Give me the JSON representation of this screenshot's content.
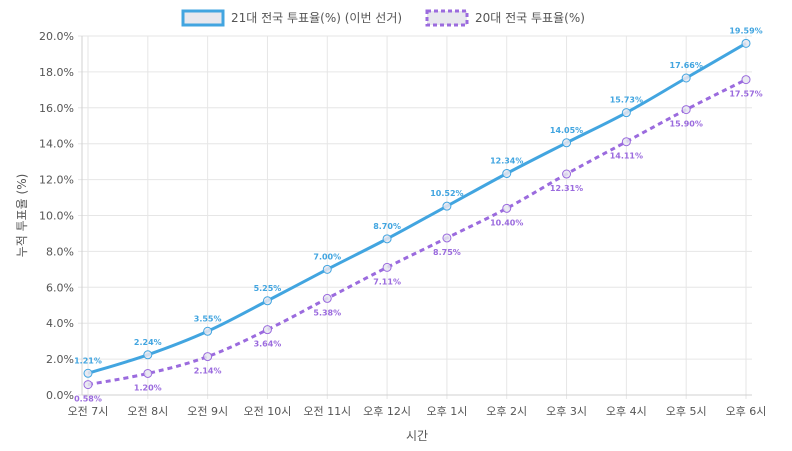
{
  "chart_data": {
    "type": "line",
    "xlabel": "시간",
    "ylabel": "누적 투표율 (%)",
    "categories": [
      "오전 7시",
      "오전 8시",
      "오전 9시",
      "오전 10시",
      "오전 11시",
      "오후 12시",
      "오후 1시",
      "오후 2시",
      "오후 3시",
      "오후 4시",
      "오후 5시",
      "오후 6시"
    ],
    "ylim": [
      0,
      20
    ],
    "yticks": [
      "0.0%",
      "2.0%",
      "4.0%",
      "6.0%",
      "8.0%",
      "10.0%",
      "12.0%",
      "14.0%",
      "16.0%",
      "18.0%",
      "20.0%"
    ],
    "grid": true,
    "legend_position": "top",
    "series": [
      {
        "name": "21대 전국 투표율(%) (이번 선거)",
        "color": "#42a5e0",
        "style": "solid",
        "values": [
          1.21,
          2.24,
          3.55,
          5.25,
          7.0,
          8.7,
          10.52,
          12.34,
          14.05,
          15.73,
          17.66,
          19.59
        ],
        "labels": [
          "1.21%",
          "2.24%",
          "3.55%",
          "5.25%",
          "7.00%",
          "8.70%",
          "10.52%",
          "12.34%",
          "14.05%",
          "15.73%",
          "17.66%",
          "19.59%"
        ]
      },
      {
        "name": "20대 전국 투표율(%)",
        "color": "#9b6bde",
        "style": "dashed",
        "values": [
          0.58,
          1.2,
          2.14,
          3.64,
          5.38,
          7.11,
          8.75,
          10.4,
          12.31,
          14.11,
          15.9,
          17.57
        ],
        "labels": [
          "0.58%",
          "1.20%",
          "2.14%",
          "3.64%",
          "5.38%",
          "7.11%",
          "8.75%",
          "10.40%",
          "12.31%",
          "14.11%",
          "15.90%",
          "17.57%"
        ]
      }
    ]
  }
}
